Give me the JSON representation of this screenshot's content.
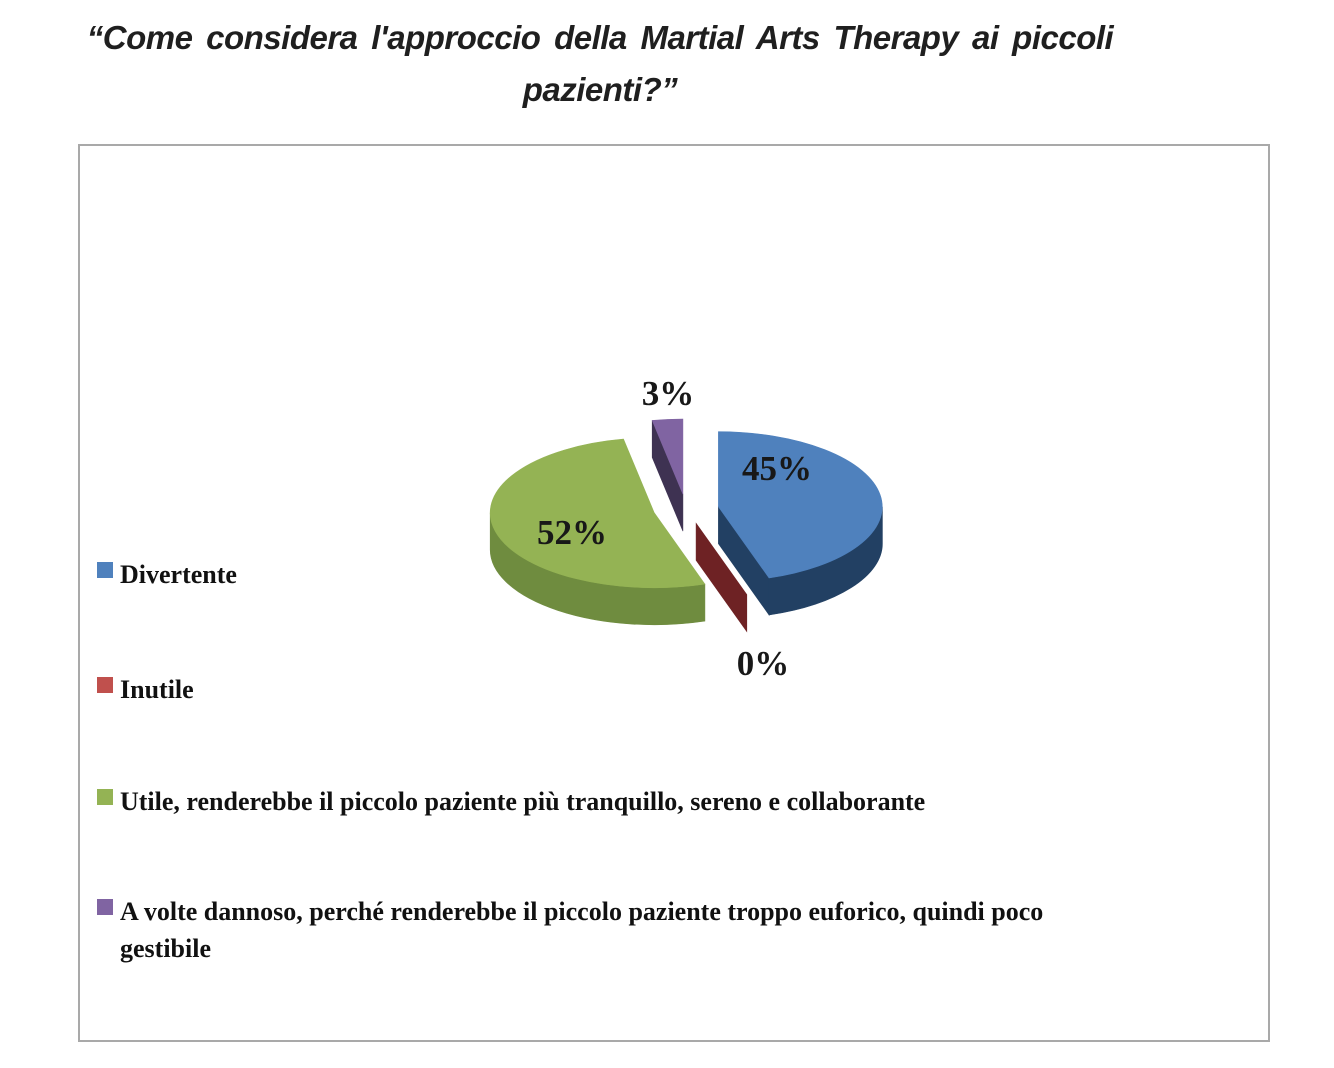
{
  "title": {
    "full": "“Come considera l'approccio della Martial Arts Therapy ai piccoli pazienti?”",
    "line1": "“Come considera l'approccio della Martial Arts Therapy ai piccoli",
    "line2": "pazienti?”"
  },
  "chart_data": {
    "type": "pie",
    "style": "3d-exploded",
    "title": "“Come considera l'approccio della Martial Arts Therapy ai piccoli pazienti?”",
    "unit": "%",
    "legend_position": "left",
    "start_angle_deg": 0,
    "direction": "clockwise",
    "slices": [
      {
        "label": "Divertente",
        "value": 45,
        "pct_label": "45%",
        "color_top": "#4F81BD",
        "color_side": "#224063"
      },
      {
        "label": "Inutile",
        "value": 0,
        "pct_label": "0%",
        "color_top": "#C0504D",
        "color_side": "#6E2224"
      },
      {
        "label": "Utile, renderebbe il piccolo paziente più tranquillo, sereno e collaborante",
        "value": 52,
        "pct_label": "52%",
        "color_top": "#94B354",
        "color_side": "#6F8C3F"
      },
      {
        "label": "A volte dannoso,  perché renderebbe il piccolo paziente troppo euforico, quindi poco gestibile",
        "value": 3,
        "pct_label": "3%",
        "color_top": "#8064A2",
        "color_side": "#3E3252"
      }
    ]
  }
}
